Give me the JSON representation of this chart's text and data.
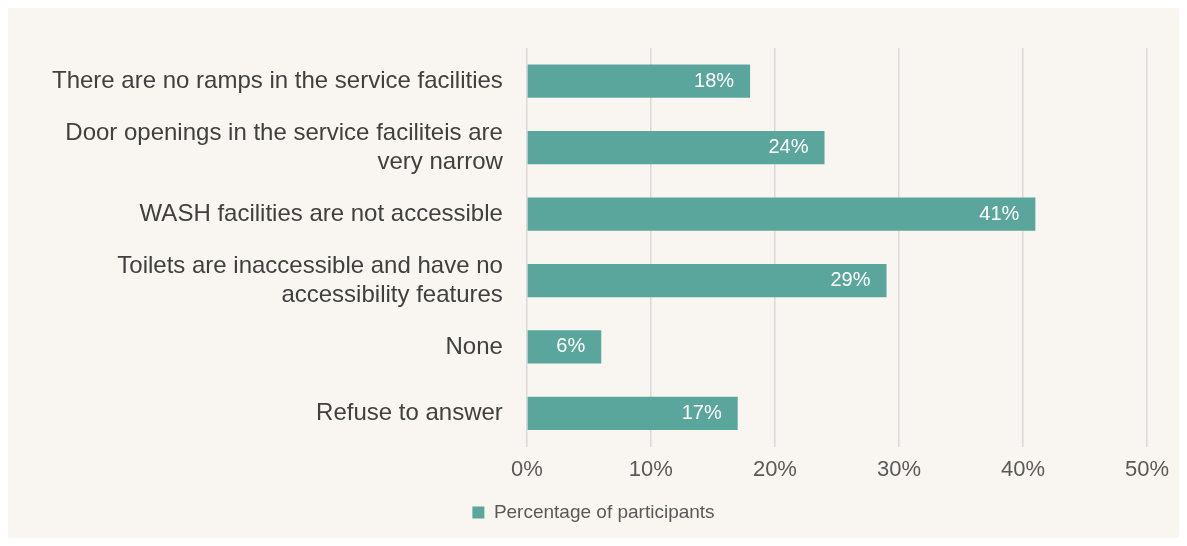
{
  "chart_data": {
    "type": "bar",
    "orientation": "horizontal",
    "categories": [
      "There are no ramps in the service facilities",
      "Door openings in the service faciliteis are very narrow",
      "WASH facilities are not accessible",
      "Toilets are inaccessible and have no accessibility features",
      "None",
      "Refuse to answer"
    ],
    "series": [
      {
        "name": "Percentage of participants",
        "color": "#5ba69c",
        "values": [
          18,
          24,
          41,
          29,
          6,
          17
        ],
        "value_labels": [
          "18%",
          "24%",
          "41%",
          "29%",
          "6%",
          "17%"
        ]
      }
    ],
    "xlim": [
      0,
      50
    ],
    "xticks": [
      {
        "value": 0,
        "label": "0%"
      },
      {
        "value": 10,
        "label": "10%"
      },
      {
        "value": 20,
        "label": "20%"
      },
      {
        "value": 30,
        "label": "30%"
      },
      {
        "value": 40,
        "label": "40%"
      },
      {
        "value": 50,
        "label": "50%"
      }
    ],
    "grid": "x",
    "legend": "bottom"
  }
}
